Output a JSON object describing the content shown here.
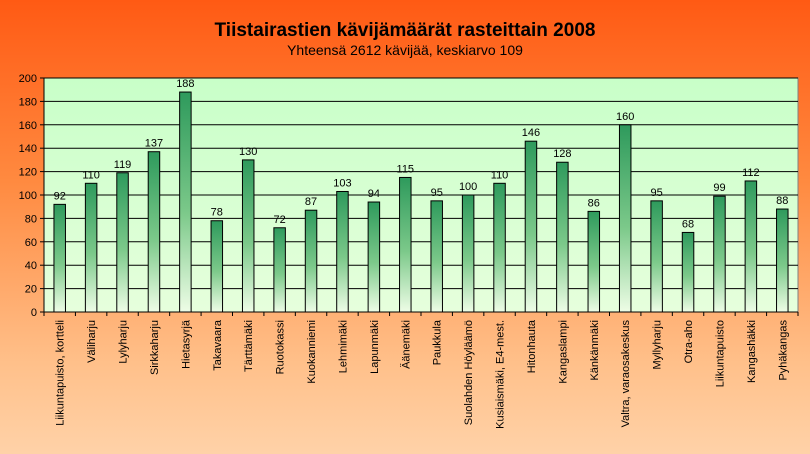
{
  "chart_data": {
    "type": "bar",
    "title": "Tiistairastien kävijämäärät rasteittain 2008",
    "subtitle": "Yhteensä 2612 kävijää, keskiarvo 109",
    "xlabel": "",
    "ylabel": "",
    "ylim": [
      0,
      200
    ],
    "yticks": [
      0,
      20,
      40,
      60,
      80,
      100,
      120,
      140,
      160,
      180,
      200
    ],
    "grid": true,
    "legend": "none",
    "categories": [
      "Liikuntapuisto, kortteli",
      "Väliharju",
      "Lylyharju",
      "Sirkkaharju",
      "Hietasyrjä",
      "Takavaara",
      "Tärttämäki",
      "Ruotokassi",
      "Kuokanniemi",
      "Lehmimäki",
      "Lapunmäki",
      "Äänemäki",
      "Paukkula",
      "Suolahden Höyläämö",
      "Kusiaismäki, E4-mest.",
      "Hitonhauta",
      "Kangaslampi",
      "Känkänmäki",
      "Valtra, varaosakeskus",
      "Myllyharju",
      "Otra-aho",
      "Liikuntapuisto",
      "Kangashäkki",
      "Pyhäkangas"
    ],
    "values": [
      92,
      110,
      119,
      137,
      188,
      78,
      130,
      72,
      87,
      103,
      94,
      115,
      95,
      100,
      110,
      146,
      128,
      86,
      160,
      95,
      68,
      99,
      112,
      88
    ],
    "colors": {
      "plot_background": "#ccffcc",
      "bar_top": "#2e9a5c",
      "bar_bottom": "#e8ffe0",
      "bar_edge": "#000000",
      "gridline": "#000000"
    }
  }
}
